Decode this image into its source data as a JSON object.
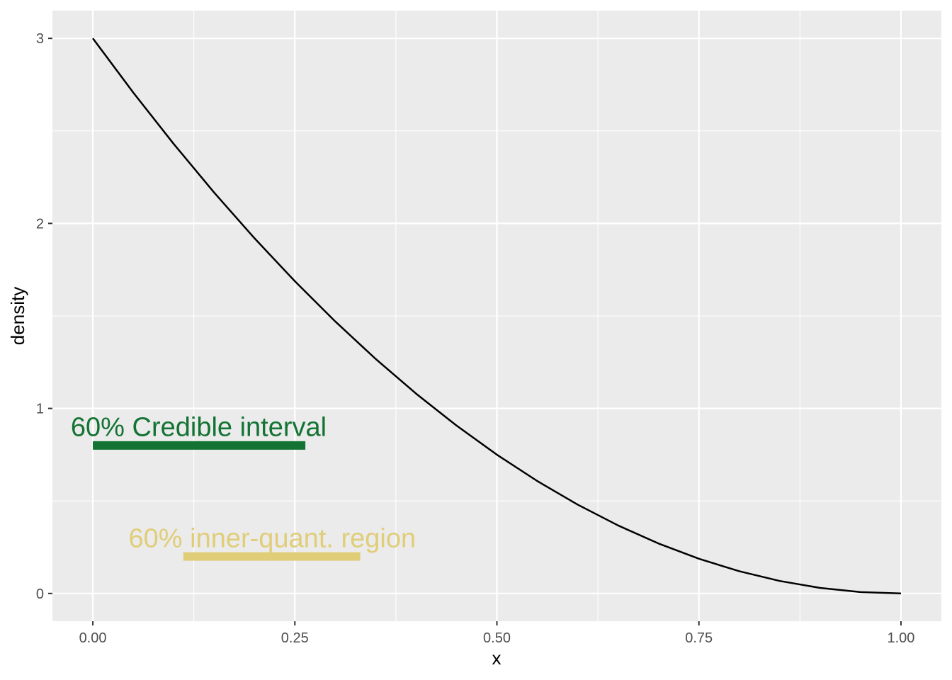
{
  "chart_data": {
    "type": "line",
    "title": "",
    "xlabel": "x",
    "ylabel": "density",
    "xlim": [
      -0.05,
      1.05
    ],
    "ylim": [
      -0.15,
      3.15
    ],
    "x_ticks": [
      0,
      0.25,
      0.5,
      0.75,
      1
    ],
    "x_tick_labels": [
      "0.00",
      "0.25",
      "0.50",
      "0.75",
      "1.00"
    ],
    "y_ticks": [
      0,
      1,
      2,
      3
    ],
    "y_tick_labels": [
      "0",
      "1",
      "2",
      "3"
    ],
    "grid": true,
    "background": "#ebebeb",
    "series": [
      {
        "color": "#000000",
        "x": [
          0.0,
          0.05,
          0.1,
          0.15,
          0.2,
          0.25,
          0.3,
          0.35,
          0.4,
          0.45,
          0.5,
          0.55,
          0.6,
          0.65,
          0.7,
          0.75,
          0.8,
          0.85,
          0.9,
          0.95,
          1.0
        ],
        "y": [
          3.0,
          2.7075,
          2.43,
          2.1675,
          1.92,
          1.6875,
          1.47,
          1.2675,
          1.08,
          0.9075,
          0.75,
          0.6075,
          0.48,
          0.3675,
          0.27,
          0.1875,
          0.12,
          0.0675,
          0.03,
          0.0075,
          0.0
        ]
      }
    ],
    "intervals": [
      {
        "label": "60% Credible interval",
        "x_start": 0.0,
        "x_end": 0.263,
        "y": 0.8,
        "color": "#137333",
        "label_x": 0.131,
        "label_y": 0.9
      },
      {
        "label": "60% inner-quant. region",
        "x_start": 0.112,
        "x_end": 0.331,
        "y": 0.2,
        "color": "#e0cd78",
        "label_x": 0.222,
        "label_y": 0.3
      }
    ]
  }
}
